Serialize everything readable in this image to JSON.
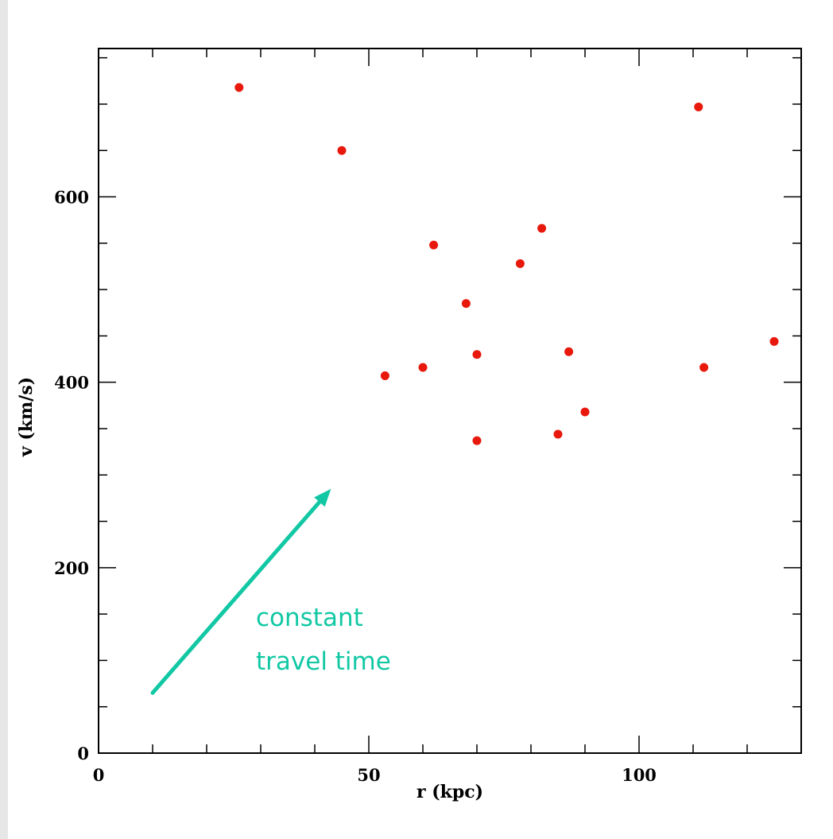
{
  "chart_data": {
    "type": "scatter",
    "title": "",
    "xlabel": "r (kpc)",
    "ylabel": "v (km/s)",
    "xlim": [
      0,
      130
    ],
    "ylim": [
      0,
      760
    ],
    "xticks_major": [
      0,
      50,
      100
    ],
    "xticks_minor_step": 10,
    "yticks_major": [
      0,
      200,
      400,
      600
    ],
    "yticks_minor_step": 50,
    "grid": false,
    "legend": "none",
    "marker_color": "#e8180c",
    "series": [
      {
        "points": [
          {
            "x": 26,
            "y": 718
          },
          {
            "x": 45,
            "y": 650
          },
          {
            "x": 53,
            "y": 407
          },
          {
            "x": 60,
            "y": 416
          },
          {
            "x": 62,
            "y": 548
          },
          {
            "x": 68,
            "y": 485
          },
          {
            "x": 70,
            "y": 430
          },
          {
            "x": 70,
            "y": 337
          },
          {
            "x": 78,
            "y": 528
          },
          {
            "x": 82,
            "y": 566
          },
          {
            "x": 85,
            "y": 344
          },
          {
            "x": 87,
            "y": 433
          },
          {
            "x": 90,
            "y": 368
          },
          {
            "x": 111,
            "y": 697
          },
          {
            "x": 112,
            "y": 416
          },
          {
            "x": 125,
            "y": 444
          }
        ]
      }
    ],
    "annotations": [
      {
        "text_lines": [
          "constant",
          "travel time"
        ],
        "color": "#12c8a4",
        "arrow_from": {
          "x": 10,
          "y": 65
        },
        "arrow_to": {
          "x": 43,
          "y": 285
        }
      }
    ]
  }
}
